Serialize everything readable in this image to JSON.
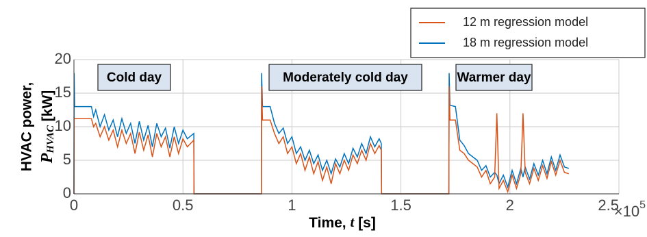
{
  "chart_data": {
    "type": "line",
    "xlabel": {
      "text": "Time, ",
      "var": "t",
      "unit": " [s]"
    },
    "ylabel": {
      "line1": "HVAC power,",
      "sym": "P",
      "sub": "HVAC",
      "unit": " [kW]"
    },
    "x_multiplier": {
      "base": "×10",
      "exp": "5"
    },
    "xlim": [
      0,
      2.5
    ],
    "ylim": [
      0,
      20
    ],
    "xticks": [
      0,
      0.5,
      1,
      1.5,
      2,
      2.5
    ],
    "yticks": [
      0,
      5,
      10,
      15,
      20
    ],
    "grid": true,
    "legend": "top-right",
    "annotations": [
      "Cold day",
      "Moderately cold day",
      "Warmer day"
    ],
    "x": [
      0,
      0.001,
      0.003,
      0.08,
      0.09,
      0.1,
      0.12,
      0.14,
      0.16,
      0.18,
      0.2,
      0.22,
      0.24,
      0.26,
      0.28,
      0.3,
      0.32,
      0.34,
      0.36,
      0.38,
      0.4,
      0.42,
      0.44,
      0.46,
      0.48,
      0.5,
      0.52,
      0.55,
      0.551,
      0.86,
      0.861,
      0.865,
      0.9,
      0.92,
      0.94,
      0.96,
      0.98,
      1.0,
      1.02,
      1.04,
      1.06,
      1.08,
      1.1,
      1.12,
      1.14,
      1.16,
      1.18,
      1.2,
      1.22,
      1.24,
      1.26,
      1.28,
      1.3,
      1.32,
      1.34,
      1.36,
      1.38,
      1.4,
      1.41,
      1.411,
      1.72,
      1.721,
      1.725,
      1.75,
      1.77,
      1.79,
      1.81,
      1.83,
      1.85,
      1.87,
      1.89,
      1.91,
      1.93,
      1.94,
      1.95,
      1.97,
      1.99,
      2.01,
      2.03,
      2.05,
      2.06,
      2.07,
      2.09,
      2.11,
      2.13,
      2.15,
      2.17,
      2.19,
      2.21,
      2.23,
      2.25,
      2.27
    ],
    "series": [
      {
        "name": "12 m regression model",
        "color": "#d95319",
        "values": [
          0,
          11.2,
          11.2,
          11.2,
          10,
          10.5,
          8.5,
          10,
          8,
          9.5,
          7,
          9.5,
          7.5,
          9,
          6,
          9.2,
          6.5,
          8.8,
          5.5,
          9,
          7,
          8.5,
          5.5,
          8.5,
          6,
          8.2,
          7,
          8,
          0,
          0,
          16,
          11,
          11,
          9,
          7.5,
          8.5,
          6,
          7,
          4.5,
          6,
          3.5,
          5.5,
          3,
          4.8,
          2,
          4,
          1.5,
          4.5,
          3,
          5,
          3.5,
          5.8,
          4.5,
          6.5,
          5,
          7.5,
          6,
          7.2,
          6.5,
          0,
          0,
          16,
          11,
          11,
          6.5,
          6,
          5,
          4.5,
          4,
          2.5,
          3.5,
          1.5,
          2.5,
          12,
          0.8,
          2,
          0.3,
          2.8,
          0.8,
          3,
          12,
          3.2,
          1.5,
          3.8,
          2,
          4.2,
          2.3,
          4.8,
          2.8,
          5,
          3.2,
          3
        ]
      },
      {
        "name": "18 m regression model",
        "color": "#0072bd",
        "values": [
          0,
          18,
          13,
          13,
          11.5,
          12.5,
          10,
          11.8,
          9.5,
          11,
          8.5,
          11.2,
          9,
          10.5,
          7.5,
          10.8,
          8,
          10.2,
          7,
          10.5,
          8.5,
          9.8,
          6.8,
          10,
          7.5,
          9.5,
          8.2,
          9,
          0,
          0,
          18,
          13,
          13,
          10.5,
          9,
          9.8,
          7.5,
          8.5,
          6,
          7,
          5,
          6.5,
          4.5,
          5.8,
          3.5,
          5,
          3,
          5.2,
          4,
          6,
          4.5,
          6.8,
          5.5,
          7.5,
          6,
          8.5,
          7,
          8.2,
          7.5,
          0,
          0,
          18,
          13.2,
          13,
          8,
          7.2,
          6,
          5.5,
          5,
          3.5,
          4.2,
          2.5,
          3.2,
          2.8,
          1.5,
          2.8,
          1,
          3.5,
          1.5,
          3.8,
          2.5,
          4,
          2.2,
          4.5,
          2.8,
          5,
          3,
          5.5,
          3.5,
          5.8,
          4,
          3.8
        ]
      }
    ]
  }
}
